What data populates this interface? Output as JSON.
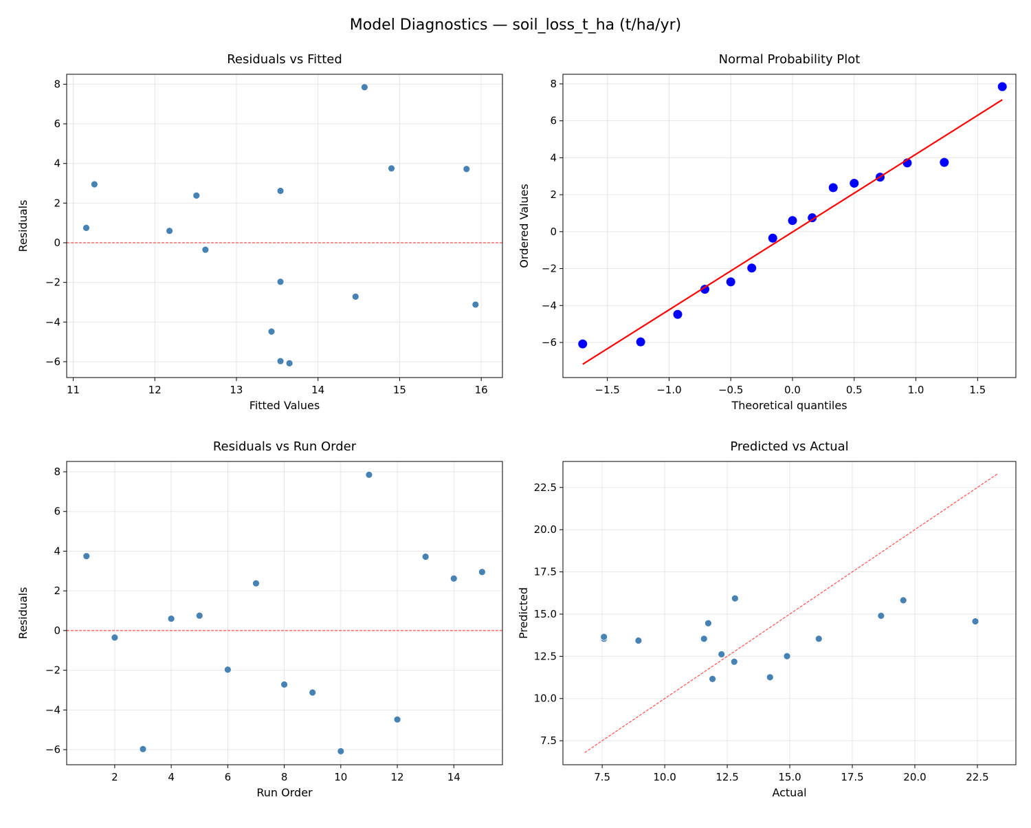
{
  "figure_title": "Model Diagnostics — soil_loss_t_ha (t/ha/yr)",
  "chart_data": [
    {
      "type": "scatter",
      "title": "Residuals vs Fitted",
      "xlabel": "Fitted Values",
      "ylabel": "Residuals",
      "xlim": [
        10.92,
        16.26
      ],
      "ylim": [
        -6.8,
        8.5
      ],
      "xticks": [
        11,
        12,
        13,
        14,
        15,
        16
      ],
      "yticks": [
        -6,
        -4,
        -2,
        0,
        2,
        4,
        6,
        8
      ],
      "grid": true,
      "point_color": "#4682b4",
      "x": [
        14.9,
        12.62,
        13.54,
        12.18,
        11.16,
        13.54,
        12.51,
        14.46,
        15.93,
        13.65,
        14.57,
        13.43,
        15.82,
        13.54,
        11.26
      ],
      "y": [
        3.75,
        -0.35,
        -5.97,
        0.6,
        0.75,
        -1.97,
        2.38,
        -2.72,
        -3.12,
        -6.08,
        7.85,
        -4.48,
        3.72,
        2.62,
        2.95
      ],
      "reference_line": {
        "kind": "horizontal",
        "y": 0,
        "style": "dashed",
        "color": "#ff4d4d"
      }
    },
    {
      "type": "scatter",
      "title": "Normal Probability Plot",
      "xlabel": "Theoretical quantiles",
      "ylabel": "Ordered Values",
      "xlim": [
        -1.86,
        1.81
      ],
      "ylim": [
        -7.9,
        8.52
      ],
      "xticks": [
        -1.5,
        -1.0,
        -0.5,
        0.0,
        0.5,
        1.0,
        1.5
      ],
      "yticks": [
        -6,
        -4,
        -2,
        0,
        2,
        4,
        6,
        8
      ],
      "grid": true,
      "point_color": "#0000ff",
      "x": [
        -1.7,
        -1.23,
        -0.93,
        -0.71,
        -0.5,
        -0.33,
        -0.16,
        0.0,
        0.16,
        0.33,
        0.5,
        0.71,
        0.93,
        1.23,
        1.7
      ],
      "y": [
        -6.08,
        -5.97,
        -4.48,
        -3.12,
        -2.72,
        -1.97,
        -0.35,
        0.6,
        0.75,
        2.38,
        2.62,
        2.95,
        3.72,
        3.75,
        7.85
      ],
      "reference_line": {
        "kind": "fit",
        "x": [
          -1.7,
          1.7
        ],
        "y": [
          -7.18,
          7.14
        ],
        "style": "solid",
        "color": "#ff0000"
      }
    },
    {
      "type": "scatter",
      "title": "Residuals vs Run Order",
      "xlabel": "Run Order",
      "ylabel": "Residuals",
      "xlim": [
        0.3,
        15.72
      ],
      "ylim": [
        -6.76,
        8.52
      ],
      "xticks": [
        2,
        4,
        6,
        8,
        10,
        12,
        14
      ],
      "yticks": [
        -6,
        -4,
        -2,
        0,
        2,
        4,
        6,
        8
      ],
      "grid": true,
      "point_color": "#4682b4",
      "x": [
        1,
        2,
        3,
        4,
        5,
        6,
        7,
        8,
        9,
        10,
        11,
        12,
        13,
        14,
        15
      ],
      "y": [
        3.75,
        -0.35,
        -5.97,
        0.6,
        0.75,
        -1.97,
        2.38,
        -2.72,
        -3.12,
        -6.08,
        7.85,
        -4.48,
        3.72,
        2.62,
        2.95
      ],
      "reference_line": {
        "kind": "horizontal",
        "y": 0,
        "style": "dashed",
        "color": "#ff4d4d"
      }
    },
    {
      "type": "scatter",
      "title": "Predicted vs Actual",
      "xlabel": "Actual",
      "ylabel": "Predicted",
      "xlim": [
        5.93,
        24.04
      ],
      "ylim": [
        6.08,
        24.04
      ],
      "xticks": [
        7.5,
        10.0,
        12.5,
        15.0,
        17.5,
        20.0,
        22.5
      ],
      "yticks": [
        7.5,
        10.0,
        12.5,
        15.0,
        17.5,
        20.0,
        22.5
      ],
      "grid": true,
      "point_color": "#4682b4",
      "x": [
        18.65,
        12.27,
        7.57,
        12.78,
        11.91,
        11.57,
        14.89,
        11.74,
        12.81,
        7.57,
        22.42,
        8.95,
        19.54,
        16.16,
        14.21
      ],
      "y": [
        14.9,
        12.62,
        13.54,
        12.18,
        11.16,
        13.54,
        12.51,
        14.46,
        15.93,
        13.65,
        14.57,
        13.43,
        15.82,
        13.54,
        11.26
      ],
      "reference_line": {
        "kind": "identity",
        "x": [
          6.8,
          23.3
        ],
        "y": [
          6.8,
          23.3
        ],
        "style": "dashed",
        "color": "#ff4d4d"
      }
    }
  ]
}
